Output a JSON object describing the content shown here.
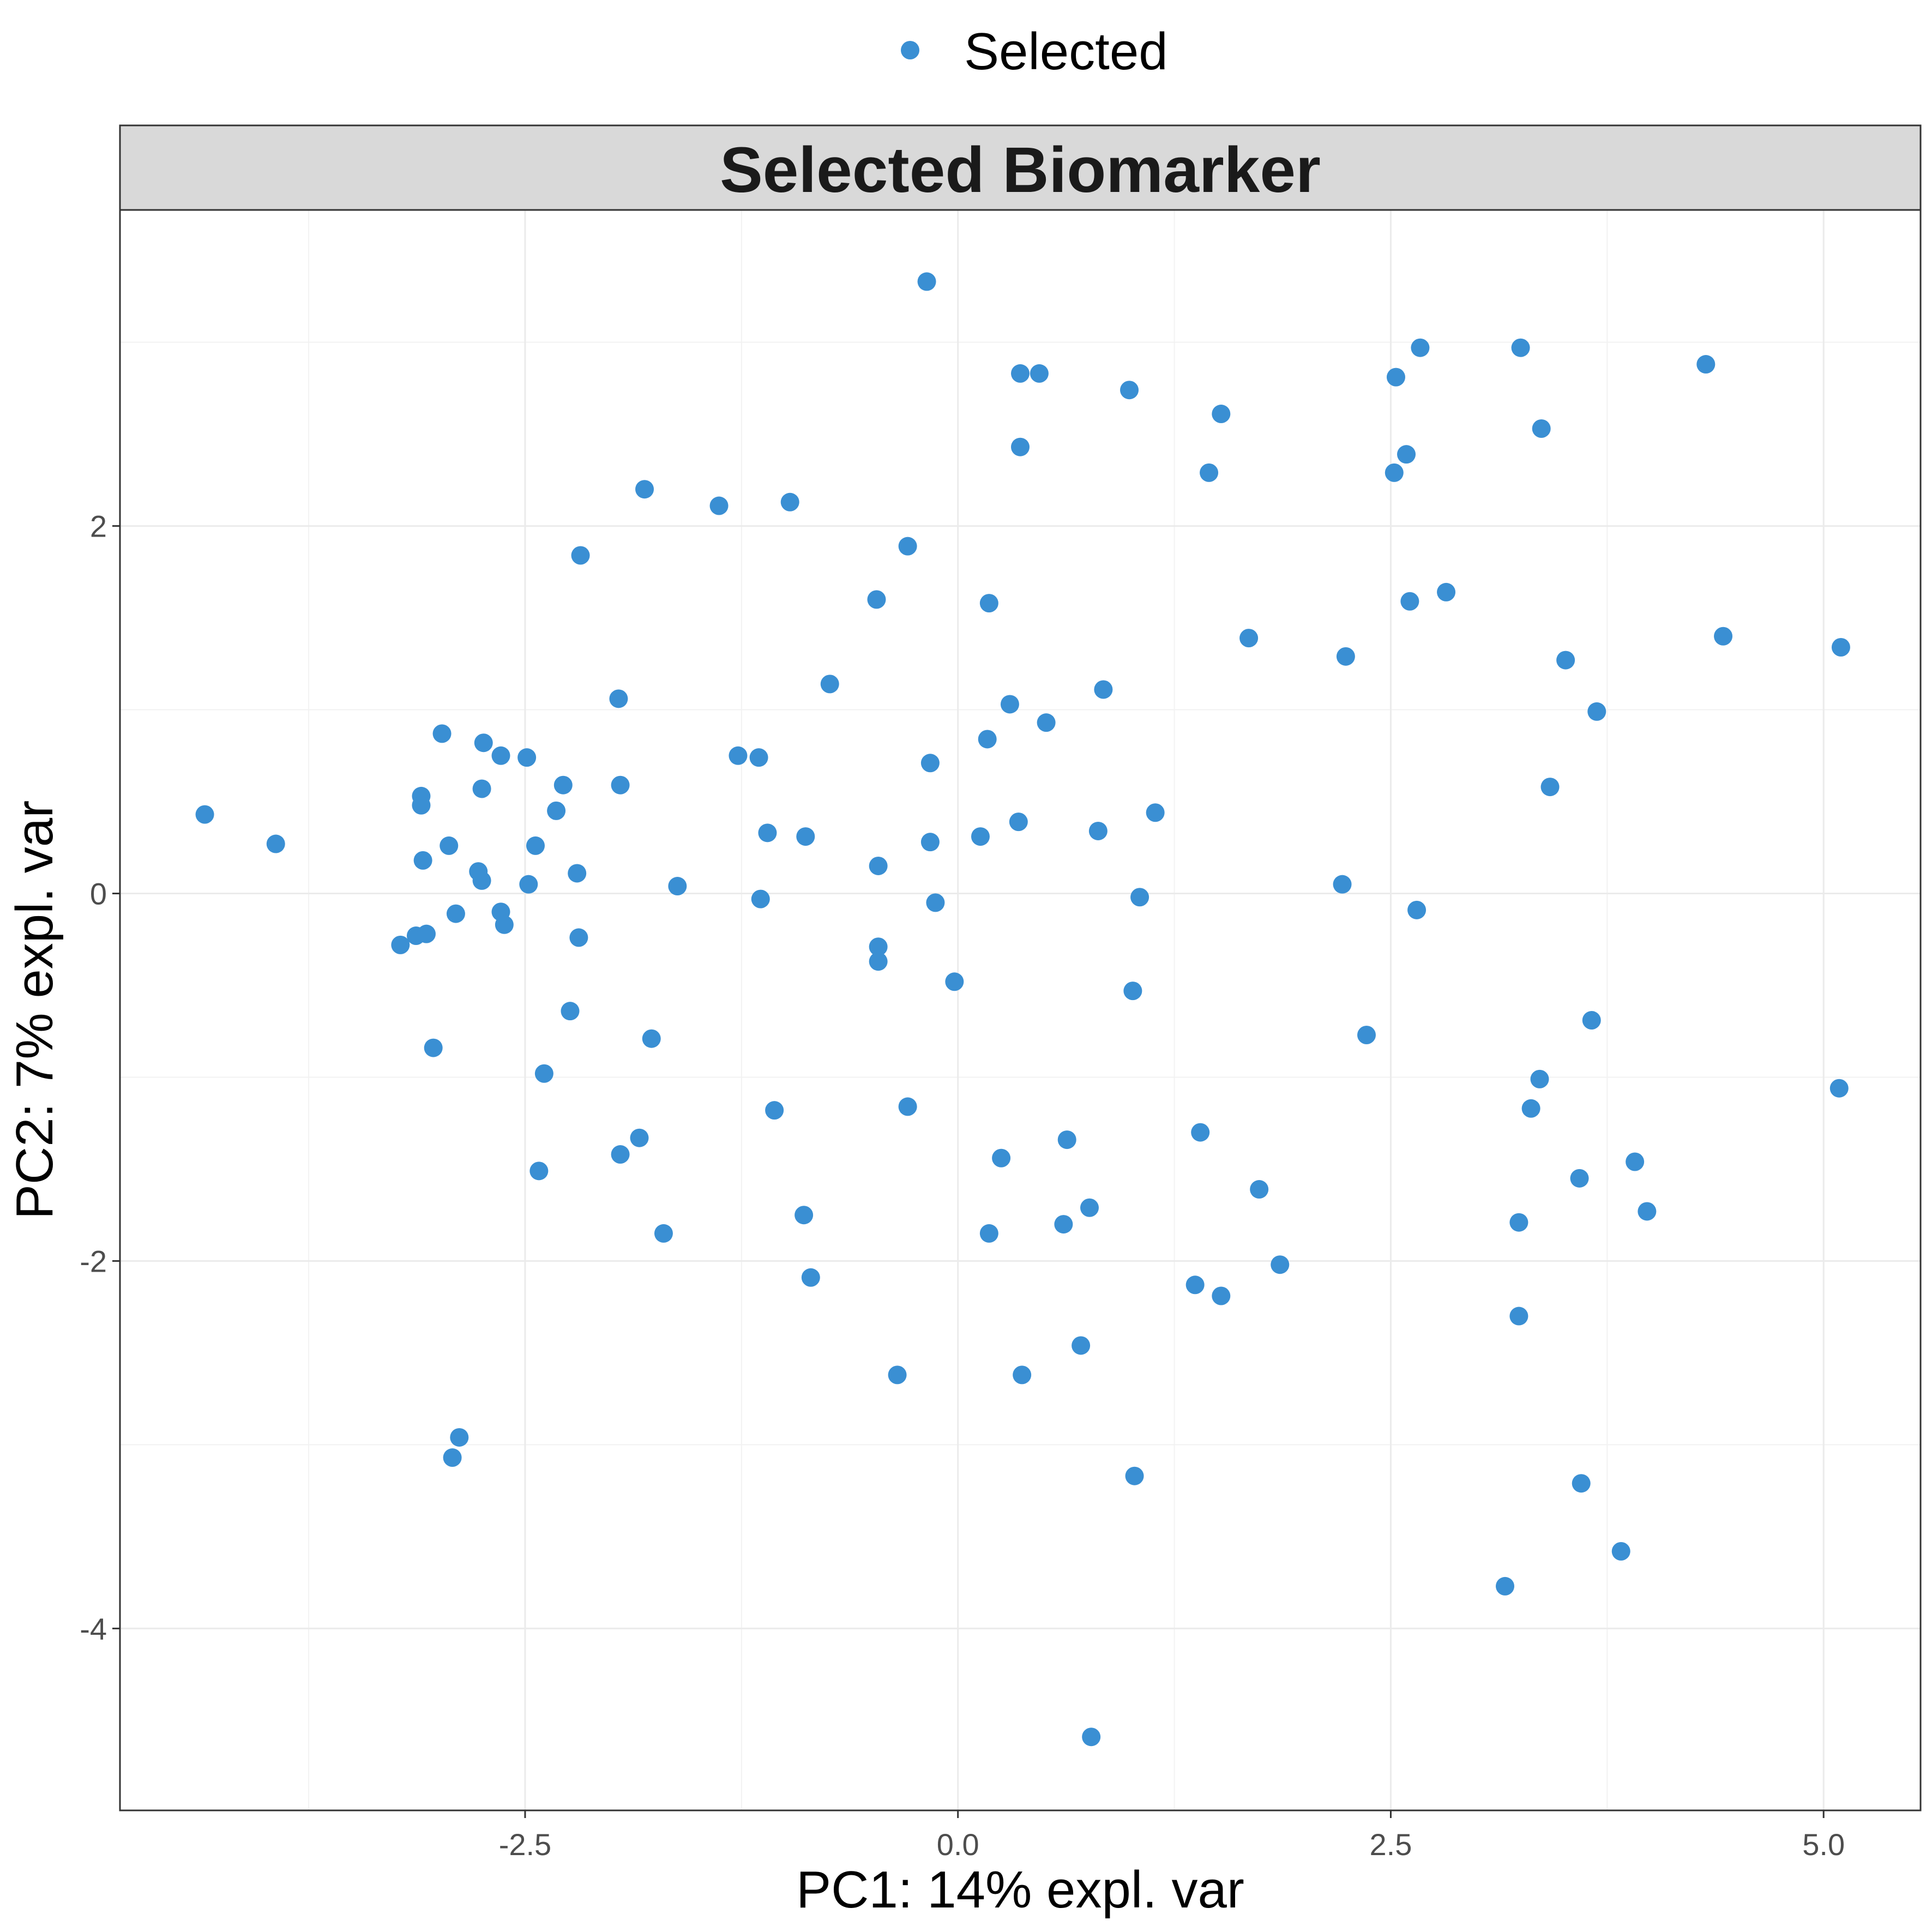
{
  "chart_data": {
    "type": "scatter",
    "title": "Selected Biomarker",
    "xlabel": "PC1: 14% expl. var",
    "ylabel": "PC2: 7% expl. var",
    "xlim": [
      -4.84,
      5.56
    ],
    "ylim": [
      -4.99,
      3.72
    ],
    "x_ticks": [
      -2.5,
      0.0,
      2.5,
      5.0
    ],
    "x_tick_labels": [
      "-2.5",
      "0.0",
      "2.5",
      "5.0"
    ],
    "y_ticks": [
      -4,
      -2,
      0,
      2
    ],
    "y_tick_labels": [
      "-4",
      "-2",
      "0",
      "2"
    ],
    "grid": true,
    "legend_position": "top",
    "point_color": "#3A8FD3",
    "series": [
      {
        "name": "Selected",
        "points": [
          [
            -4.35,
            0.43
          ],
          [
            -3.94,
            0.27
          ],
          [
            -3.22,
            -0.28
          ],
          [
            -3.13,
            -0.23
          ],
          [
            -3.1,
            0.53
          ],
          [
            -3.1,
            0.48
          ],
          [
            -3.09,
            0.18
          ],
          [
            -3.07,
            -0.22
          ],
          [
            -3.03,
            -0.84
          ],
          [
            -2.98,
            0.87
          ],
          [
            -2.94,
            0.26
          ],
          [
            -2.9,
            -0.11
          ],
          [
            -2.88,
            -2.96
          ],
          [
            -2.92,
            -3.07
          ],
          [
            -2.77,
            0.12
          ],
          [
            -2.75,
            0.07
          ],
          [
            -2.75,
            0.57
          ],
          [
            -2.74,
            0.82
          ],
          [
            -2.64,
            -0.1
          ],
          [
            -2.64,
            0.75
          ],
          [
            -2.62,
            -0.17
          ],
          [
            -2.49,
            0.74
          ],
          [
            -2.48,
            0.05
          ],
          [
            -2.44,
            0.26
          ],
          [
            -2.42,
            -1.51
          ],
          [
            -2.39,
            -0.98
          ],
          [
            -2.32,
            0.45
          ],
          [
            -2.28,
            0.59
          ],
          [
            -2.24,
            -0.64
          ],
          [
            -2.2,
            0.11
          ],
          [
            -2.19,
            -0.24
          ],
          [
            -2.18,
            1.84
          ],
          [
            -1.96,
            1.06
          ],
          [
            -1.95,
            0.59
          ],
          [
            -1.95,
            -1.42
          ],
          [
            -1.84,
            -1.33
          ],
          [
            -1.81,
            2.2
          ],
          [
            -1.77,
            -0.79
          ],
          [
            -1.7,
            -1.85
          ],
          [
            -1.62,
            0.04
          ],
          [
            -1.38,
            2.11
          ],
          [
            -1.27,
            0.75
          ],
          [
            -1.15,
            0.74
          ],
          [
            -1.14,
            -0.03
          ],
          [
            -1.1,
            0.33
          ],
          [
            -1.06,
            -1.18
          ],
          [
            -0.97,
            2.13
          ],
          [
            -0.89,
            -1.75
          ],
          [
            -0.88,
            0.31
          ],
          [
            -0.85,
            -2.09
          ],
          [
            -0.74,
            1.14
          ],
          [
            -0.47,
            1.6
          ],
          [
            -0.46,
            0.15
          ],
          [
            -0.46,
            -0.29
          ],
          [
            -0.46,
            -0.37
          ],
          [
            -0.35,
            -2.62
          ],
          [
            -0.29,
            1.89
          ],
          [
            -0.29,
            -1.16
          ],
          [
            -0.18,
            3.33
          ],
          [
            -0.16,
            0.28
          ],
          [
            -0.16,
            0.71
          ],
          [
            -0.13,
            -0.05
          ],
          [
            -0.02,
            -0.48
          ],
          [
            0.13,
            0.31
          ],
          [
            0.17,
            0.84
          ],
          [
            0.18,
            1.58
          ],
          [
            0.18,
            -1.85
          ],
          [
            0.25,
            -1.44
          ],
          [
            0.3,
            1.03
          ],
          [
            0.35,
            0.39
          ],
          [
            0.36,
            2.43
          ],
          [
            0.36,
            2.83
          ],
          [
            0.37,
            -2.62
          ],
          [
            0.47,
            2.83
          ],
          [
            0.51,
            0.93
          ],
          [
            0.61,
            -1.8
          ],
          [
            0.63,
            -1.34
          ],
          [
            0.71,
            -2.46
          ],
          [
            0.76,
            -1.71
          ],
          [
            0.77,
            -4.59
          ],
          [
            0.81,
            0.34
          ],
          [
            0.84,
            1.11
          ],
          [
            0.99,
            2.74
          ],
          [
            1.01,
            -0.53
          ],
          [
            1.02,
            -3.17
          ],
          [
            1.05,
            -0.02
          ],
          [
            1.14,
            0.44
          ],
          [
            1.37,
            -2.13
          ],
          [
            1.4,
            -1.3
          ],
          [
            1.45,
            2.29
          ],
          [
            1.52,
            -2.19
          ],
          [
            1.52,
            2.61
          ],
          [
            1.68,
            1.39
          ],
          [
            1.74,
            -1.61
          ],
          [
            1.86,
            -2.02
          ],
          [
            2.22,
            0.05
          ],
          [
            2.24,
            1.29
          ],
          [
            2.36,
            -0.77
          ],
          [
            2.52,
            2.29
          ],
          [
            2.53,
            2.81
          ],
          [
            2.59,
            2.39
          ],
          [
            2.61,
            1.59
          ],
          [
            2.65,
            -0.09
          ],
          [
            2.67,
            2.97
          ],
          [
            2.82,
            1.64
          ],
          [
            3.16,
            -3.77
          ],
          [
            3.24,
            -2.3
          ],
          [
            3.24,
            -1.79
          ],
          [
            3.25,
            2.97
          ],
          [
            3.31,
            -1.17
          ],
          [
            3.36,
            -1.01
          ],
          [
            3.37,
            2.53
          ],
          [
            3.42,
            0.58
          ],
          [
            3.51,
            1.27
          ],
          [
            3.59,
            -1.55
          ],
          [
            3.6,
            -3.21
          ],
          [
            3.66,
            -0.69
          ],
          [
            3.69,
            0.99
          ],
          [
            3.83,
            -3.58
          ],
          [
            3.91,
            -1.46
          ],
          [
            3.98,
            -1.73
          ],
          [
            4.32,
            2.88
          ],
          [
            4.42,
            1.4
          ],
          [
            5.1,
            1.34
          ],
          [
            5.09,
            -1.06
          ]
        ]
      }
    ]
  }
}
